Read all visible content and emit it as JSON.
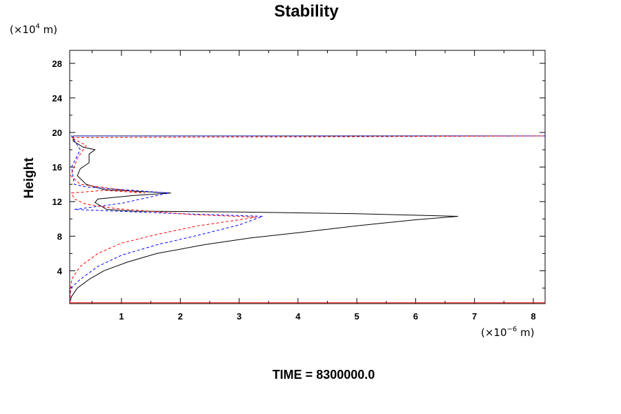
{
  "chart_data": {
    "type": "line",
    "title": "Stability",
    "ylabel": "Height",
    "xlabel": "",
    "y_unit": {
      "prefix": "(×10",
      "exp": "4",
      "suffix": " m)"
    },
    "x_unit": {
      "prefix": "(×10",
      "exp": "−6",
      "suffix": " m)"
    },
    "xlim": [
      0.12,
      8.2
    ],
    "ylim": [
      0.2,
      29.5
    ],
    "x_ticks": [
      1,
      2,
      3,
      4,
      5,
      6,
      7,
      8
    ],
    "x_tick_labels": [
      "1",
      "2",
      "3",
      "4",
      "5",
      "6",
      "7",
      "8"
    ],
    "y_ticks": [
      4,
      8,
      12,
      16,
      20,
      24,
      28
    ],
    "y_tick_labels": [
      "4",
      "8",
      "12",
      "16",
      "20",
      "24",
      "28"
    ],
    "grid": false,
    "series": [
      {
        "color": "#000000",
        "dash": "solid",
        "points": [
          [
            0.12,
            0.3
          ],
          [
            0.15,
            1.0
          ],
          [
            0.25,
            2.0
          ],
          [
            0.45,
            3.0
          ],
          [
            0.7,
            4.0
          ],
          [
            1.1,
            5.0
          ],
          [
            1.6,
            6.0
          ],
          [
            2.4,
            7.0
          ],
          [
            3.2,
            7.8
          ],
          [
            4.0,
            8.4
          ],
          [
            5.0,
            9.2
          ],
          [
            6.0,
            9.9
          ],
          [
            6.72,
            10.3
          ],
          [
            5.0,
            10.6
          ],
          [
            3.0,
            10.8
          ],
          [
            1.2,
            10.9
          ],
          [
            0.75,
            11.1
          ],
          [
            0.55,
            11.9
          ],
          [
            0.6,
            12.3
          ],
          [
            1.2,
            12.7
          ],
          [
            1.84,
            13.0
          ],
          [
            0.7,
            13.4
          ],
          [
            0.4,
            14.0
          ],
          [
            0.25,
            15.0
          ],
          [
            0.3,
            15.8
          ],
          [
            0.45,
            16.5
          ],
          [
            0.45,
            17.5
          ],
          [
            0.55,
            18.0
          ],
          [
            0.35,
            18.3
          ],
          [
            0.18,
            19.0
          ],
          [
            0.18,
            19.6
          ],
          [
            8.2,
            19.6
          ]
        ]
      },
      {
        "color": "#0000ff",
        "dash": "dashed",
        "points": [
          [
            0.12,
            0.3
          ],
          [
            0.14,
            2.0
          ],
          [
            0.3,
            3.0
          ],
          [
            0.6,
            4.5
          ],
          [
            1.0,
            5.8
          ],
          [
            1.6,
            7.0
          ],
          [
            2.3,
            8.1
          ],
          [
            3.0,
            9.3
          ],
          [
            3.4,
            10.3
          ],
          [
            2.0,
            10.6
          ],
          [
            0.9,
            10.9
          ],
          [
            0.2,
            11.1
          ],
          [
            1.0,
            11.8
          ],
          [
            1.8,
            13.0
          ],
          [
            1.0,
            13.4
          ],
          [
            0.4,
            13.7
          ],
          [
            0.2,
            14.0
          ],
          [
            0.15,
            16.0
          ],
          [
            0.3,
            18.0
          ],
          [
            0.15,
            19.6
          ],
          [
            8.2,
            19.6
          ]
        ]
      },
      {
        "color": "#ff0000",
        "dash": "dashed",
        "points": [
          [
            0.12,
            0.3
          ],
          [
            0.15,
            3.0
          ],
          [
            0.3,
            4.5
          ],
          [
            0.6,
            6.0
          ],
          [
            1.0,
            7.2
          ],
          [
            1.6,
            8.2
          ],
          [
            2.3,
            9.2
          ],
          [
            3.0,
            9.9
          ],
          [
            3.3,
            10.2
          ],
          [
            2.2,
            10.5
          ],
          [
            0.9,
            11.2
          ],
          [
            0.4,
            11.7
          ],
          [
            0.2,
            12.3
          ],
          [
            0.15,
            13.0
          ],
          [
            0.7,
            13.3
          ],
          [
            1.4,
            13.0
          ],
          [
            0.3,
            14.0
          ],
          [
            0.14,
            15.0
          ],
          [
            0.25,
            17.0
          ],
          [
            0.4,
            18.5
          ],
          [
            0.15,
            19.4
          ],
          [
            8.2,
            19.6
          ]
        ]
      }
    ],
    "baseline": {
      "y": 0.3,
      "color": "#ff0000"
    }
  },
  "footer": {
    "time_text": "TIME = 8300000.0"
  }
}
